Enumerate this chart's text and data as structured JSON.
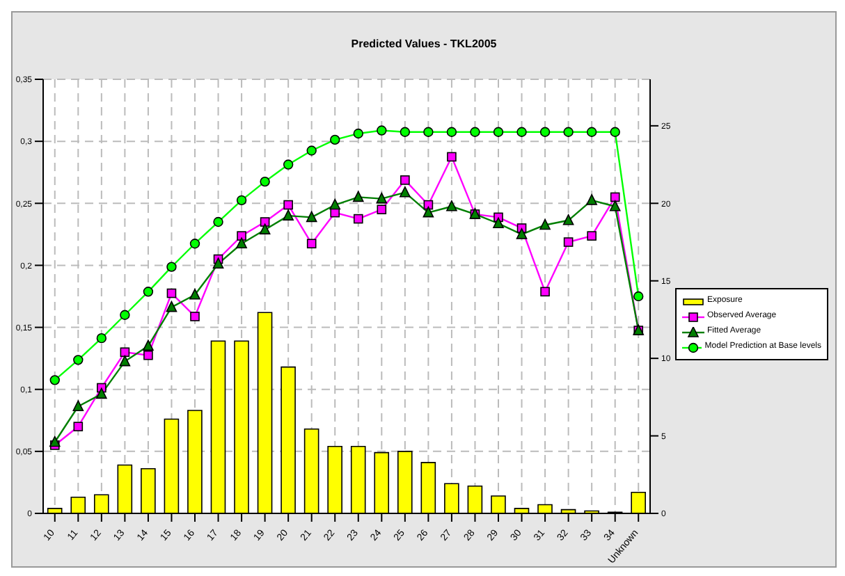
{
  "chart_data": {
    "type": "bar",
    "title": "Predicted Values - TKL2005",
    "categories": [
      "10",
      "11",
      "12",
      "13",
      "14",
      "15",
      "16",
      "17",
      "18",
      "19",
      "20",
      "21",
      "22",
      "23",
      "24",
      "25",
      "26",
      "27",
      "28",
      "29",
      "30",
      "31",
      "32",
      "33",
      "34",
      "Unknown"
    ],
    "series": [
      {
        "name": "Exposure",
        "color": "#ffff00",
        "values": [
          0.004,
          0.013,
          0.015,
          0.039,
          0.036,
          0.076,
          0.083,
          0.139,
          0.139,
          0.162,
          0.118,
          0.068,
          0.054,
          0.054,
          0.049,
          0.05,
          0.041,
          0.024,
          0.022,
          0.014,
          0.004,
          0.007,
          0.003,
          0.002,
          0.001,
          0.017
        ]
      },
      {
        "name": "Observed Average",
        "type": "line",
        "axis": "y2",
        "color": "#ff00ff",
        "marker": "square",
        "values": [
          4.4,
          5.6,
          8.1,
          10.4,
          10.2,
          14.2,
          12.7,
          16.4,
          17.9,
          18.8,
          19.9,
          17.4,
          19.4,
          19.0,
          19.6,
          21.5,
          19.9,
          23.0,
          19.3,
          19.1,
          18.4,
          14.3,
          17.5,
          17.9,
          20.4,
          11.8
        ]
      },
      {
        "name": "Fitted Average",
        "type": "line",
        "axis": "y2",
        "color": "#007f00",
        "marker": "triangle",
        "values": [
          4.6,
          6.9,
          7.7,
          9.8,
          10.8,
          13.3,
          14.1,
          16.1,
          17.4,
          18.3,
          19.2,
          19.1,
          19.9,
          20.4,
          20.3,
          20.7,
          19.4,
          19.8,
          19.3,
          18.7,
          18.0,
          18.6,
          18.9,
          20.2,
          19.8,
          11.8
        ]
      },
      {
        "name": "Model Prediction at Base levels",
        "type": "line",
        "axis": "y2",
        "color": "#00ff00",
        "marker": "circle",
        "values": [
          8.6,
          9.9,
          11.3,
          12.8,
          14.3,
          15.9,
          17.4,
          18.8,
          20.2,
          21.4,
          22.5,
          23.4,
          24.1,
          24.5,
          24.7,
          24.6,
          24.6,
          24.6,
          24.6,
          24.6,
          24.6,
          24.6,
          24.6,
          24.6,
          24.6,
          14.0
        ]
      }
    ],
    "ylim": [
      0,
      0.35
    ],
    "yticks": [
      0,
      {
        "value": 0.05,
        "label": "0,05"
      },
      {
        "value": 0.1,
        "label": "0,1"
      },
      {
        "value": 0.15,
        "label": "0,15"
      },
      {
        "value": 0.2,
        "label": "0,2"
      },
      {
        "value": 0.25,
        "label": "0,25"
      },
      {
        "value": 0.3,
        "label": "0,3"
      },
      {
        "value": 0.35,
        "label": "0,35"
      }
    ],
    "y2lim": [
      0,
      28
    ],
    "y2ticks": [
      0,
      5,
      10,
      15,
      20,
      25
    ],
    "grid": true,
    "legend": "right"
  }
}
